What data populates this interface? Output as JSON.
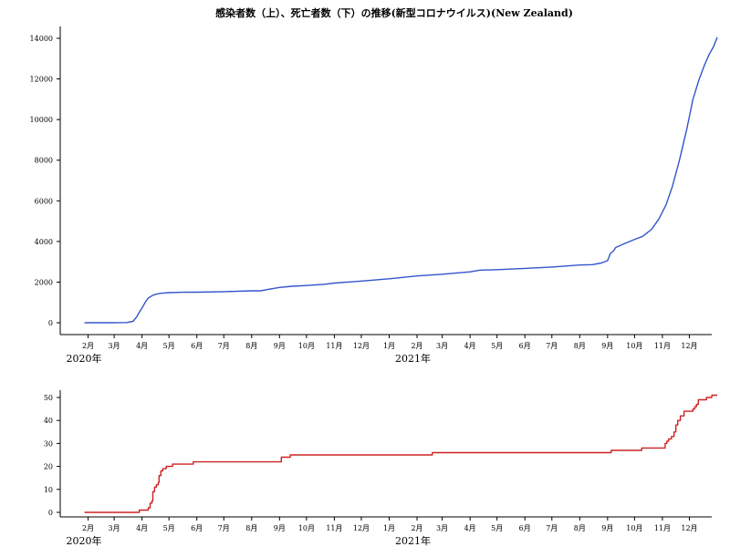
{
  "title": "感染者数（上）、死亡者数（下）の推移(新型コロナウイルス)(New Zealand)",
  "colors": {
    "cases": "#3355cc",
    "deaths": "#cc2222",
    "axis": "#000000"
  },
  "x_axis": {
    "month_ticks": [
      {
        "date": "2020-02-01",
        "label": "2月"
      },
      {
        "date": "2020-03-01",
        "label": "3月"
      },
      {
        "date": "2020-04-01",
        "label": "4月"
      },
      {
        "date": "2020-05-01",
        "label": "5月"
      },
      {
        "date": "2020-06-01",
        "label": "6月"
      },
      {
        "date": "2020-07-01",
        "label": "7月"
      },
      {
        "date": "2020-08-01",
        "label": "8月"
      },
      {
        "date": "2020-09-01",
        "label": "9月"
      },
      {
        "date": "2020-10-01",
        "label": "10月"
      },
      {
        "date": "2020-11-01",
        "label": "11月"
      },
      {
        "date": "2020-12-01",
        "label": "12月"
      },
      {
        "date": "2021-01-01",
        "label": "1月"
      },
      {
        "date": "2021-02-01",
        "label": "2月"
      },
      {
        "date": "2021-03-01",
        "label": "3月"
      },
      {
        "date": "2021-04-01",
        "label": "4月"
      },
      {
        "date": "2021-05-01",
        "label": "5月"
      },
      {
        "date": "2021-06-01",
        "label": "6月"
      },
      {
        "date": "2021-07-01",
        "label": "7月"
      },
      {
        "date": "2021-08-01",
        "label": "8月"
      },
      {
        "date": "2021-09-01",
        "label": "9月"
      },
      {
        "date": "2021-10-01",
        "label": "10月"
      },
      {
        "date": "2021-11-01",
        "label": "11月"
      },
      {
        "date": "2021-12-01",
        "label": "12月"
      }
    ],
    "year_labels": [
      {
        "date": "2020-01-01",
        "label": "2020年"
      },
      {
        "date": "2021-01-01",
        "label": "2021年"
      }
    ],
    "range": [
      "2020-01-01",
      "2022-01-01"
    ]
  },
  "chart_data": [
    {
      "type": "line",
      "name": "cases",
      "ylim": [
        0,
        14000
      ],
      "yticks": [
        0,
        2000,
        4000,
        6000,
        8000,
        10000,
        12000,
        14000
      ],
      "grid": false,
      "points": [
        [
          "2020-01-28",
          0
        ],
        [
          "2020-02-28",
          0
        ],
        [
          "2020-03-15",
          8
        ],
        [
          "2020-03-22",
          66
        ],
        [
          "2020-03-26",
          283
        ],
        [
          "2020-03-29",
          514
        ],
        [
          "2020-04-02",
          797
        ],
        [
          "2020-04-05",
          1039
        ],
        [
          "2020-04-08",
          1210
        ],
        [
          "2020-04-12",
          1330
        ],
        [
          "2020-04-16",
          1401
        ],
        [
          "2020-04-22",
          1451
        ],
        [
          "2020-05-01",
          1479
        ],
        [
          "2020-05-15",
          1498
        ],
        [
          "2020-06-01",
          1504
        ],
        [
          "2020-07-01",
          1530
        ],
        [
          "2020-08-01",
          1569
        ],
        [
          "2020-08-11",
          1570
        ],
        [
          "2020-08-20",
          1649
        ],
        [
          "2020-09-01",
          1738
        ],
        [
          "2020-09-15",
          1796
        ],
        [
          "2020-10-01",
          1833
        ],
        [
          "2020-10-15",
          1877
        ],
        [
          "2020-10-20",
          1890
        ],
        [
          "2020-11-01",
          1950
        ],
        [
          "2020-12-01",
          2052
        ],
        [
          "2021-01-01",
          2162
        ],
        [
          "2021-02-01",
          2303
        ],
        [
          "2021-03-01",
          2389
        ],
        [
          "2021-04-01",
          2504
        ],
        [
          "2021-04-12",
          2590
        ],
        [
          "2021-05-01",
          2613
        ],
        [
          "2021-06-01",
          2674
        ],
        [
          "2021-07-01",
          2740
        ],
        [
          "2021-08-01",
          2840
        ],
        [
          "2021-08-15",
          2860
        ],
        [
          "2021-08-25",
          2940
        ],
        [
          "2021-09-01",
          3050
        ],
        [
          "2021-09-04",
          3400
        ],
        [
          "2021-09-08",
          3550
        ],
        [
          "2021-09-10",
          3700
        ],
        [
          "2021-09-20",
          3900
        ],
        [
          "2021-10-01",
          4100
        ],
        [
          "2021-10-10",
          4250
        ],
        [
          "2021-10-20",
          4600
        ],
        [
          "2021-10-28",
          5100
        ],
        [
          "2021-11-05",
          5800
        ],
        [
          "2021-11-12",
          6700
        ],
        [
          "2021-11-20",
          8000
        ],
        [
          "2021-11-28",
          9500
        ],
        [
          "2021-12-05",
          11000
        ],
        [
          "2021-12-12",
          12000
        ],
        [
          "2021-12-18",
          12700
        ],
        [
          "2021-12-23",
          13200
        ],
        [
          "2021-12-28",
          13600
        ],
        [
          "2022-01-01",
          14050
        ]
      ]
    },
    {
      "type": "line",
      "name": "deaths",
      "step": true,
      "ylim": [
        0,
        52
      ],
      "yticks": [
        0,
        10,
        20,
        30,
        40,
        50
      ],
      "grid": false,
      "points": [
        [
          "2020-01-28",
          0
        ],
        [
          "2020-03-29",
          1
        ],
        [
          "2020-04-08",
          2
        ],
        [
          "2020-04-10",
          4
        ],
        [
          "2020-04-12",
          5
        ],
        [
          "2020-04-13",
          9
        ],
        [
          "2020-04-15",
          11
        ],
        [
          "2020-04-17",
          12
        ],
        [
          "2020-04-19",
          13
        ],
        [
          "2020-04-20",
          16
        ],
        [
          "2020-04-22",
          18
        ],
        [
          "2020-04-24",
          19
        ],
        [
          "2020-04-28",
          20
        ],
        [
          "2020-05-02",
          20
        ],
        [
          "2020-05-05",
          21
        ],
        [
          "2020-05-24",
          21
        ],
        [
          "2020-05-28",
          22
        ],
        [
          "2020-09-01",
          22
        ],
        [
          "2020-09-03",
          24
        ],
        [
          "2020-09-13",
          25
        ],
        [
          "2021-02-18",
          26
        ],
        [
          "2021-09-04",
          26
        ],
        [
          "2021-09-05",
          27
        ],
        [
          "2021-10-09",
          28
        ],
        [
          "2021-11-04",
          30
        ],
        [
          "2021-11-06",
          31
        ],
        [
          "2021-11-08",
          32
        ],
        [
          "2021-11-11",
          33
        ],
        [
          "2021-11-14",
          35
        ],
        [
          "2021-11-16",
          38
        ],
        [
          "2021-11-18",
          40
        ],
        [
          "2021-11-21",
          42
        ],
        [
          "2021-11-25",
          44
        ],
        [
          "2021-12-05",
          45
        ],
        [
          "2021-12-07",
          46
        ],
        [
          "2021-12-09",
          47
        ],
        [
          "2021-12-11",
          49
        ],
        [
          "2021-12-20",
          50
        ],
        [
          "2021-12-26",
          51
        ],
        [
          "2022-01-01",
          51
        ]
      ]
    }
  ]
}
